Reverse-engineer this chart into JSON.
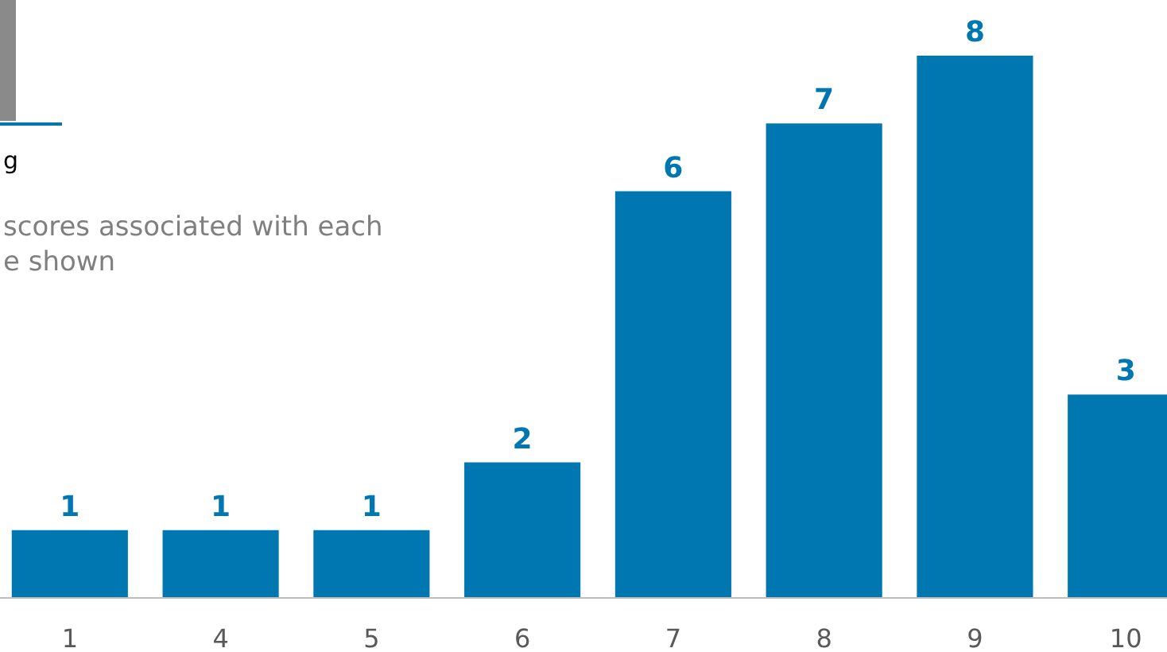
{
  "chart_data": {
    "type": "bar",
    "title": "g",
    "annotations": [
      "scores associated with each",
      "e shown"
    ],
    "categories": [
      "1",
      "4",
      "5",
      "6",
      "7",
      "8",
      "9",
      "10"
    ],
    "values": [
      1,
      1,
      1,
      2,
      6,
      7,
      8,
      3
    ],
    "color": "#0077b0",
    "data_labels": true
  }
}
